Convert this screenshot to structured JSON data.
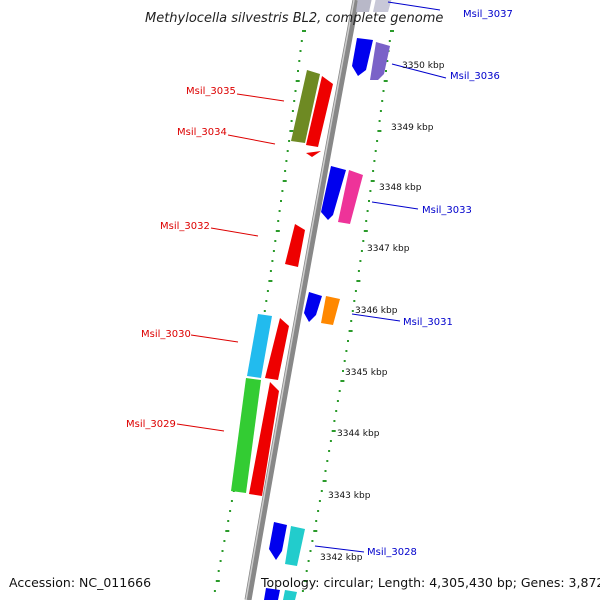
{
  "title": "Methylocella silvestris BL2, complete genome",
  "footer": {
    "accession": "Accession: NC_011666",
    "topology": "Topology: circular; Length: 4,305,430 bp; Genes: 3,872"
  },
  "tick_labels": [
    "3350 kbp",
    "3349 kbp",
    "3348 kbp",
    "3347 kbp",
    "3346 kbp",
    "3345 kbp",
    "3344 kbp",
    "3343 kbp",
    "3342 kbp"
  ],
  "genes": [
    {
      "name": "Msil_3037",
      "strand": "plus"
    },
    {
      "name": "Msil_3036",
      "strand": "plus"
    },
    {
      "name": "Msil_3035",
      "strand": "minus"
    },
    {
      "name": "Msil_3034",
      "strand": "minus"
    },
    {
      "name": "Msil_3033",
      "strand": "plus"
    },
    {
      "name": "Msil_3032",
      "strand": "minus"
    },
    {
      "name": "Msil_3031",
      "strand": "plus"
    },
    {
      "name": "Msil_3030",
      "strand": "minus"
    },
    {
      "name": "Msil_3029",
      "strand": "minus"
    },
    {
      "name": "Msil_3028",
      "strand": "plus"
    }
  ],
  "colors": {
    "plus_label": "#0000cc",
    "minus_label": "#dd0000",
    "backbone": "#888888",
    "dots": "#2a9a2a"
  }
}
